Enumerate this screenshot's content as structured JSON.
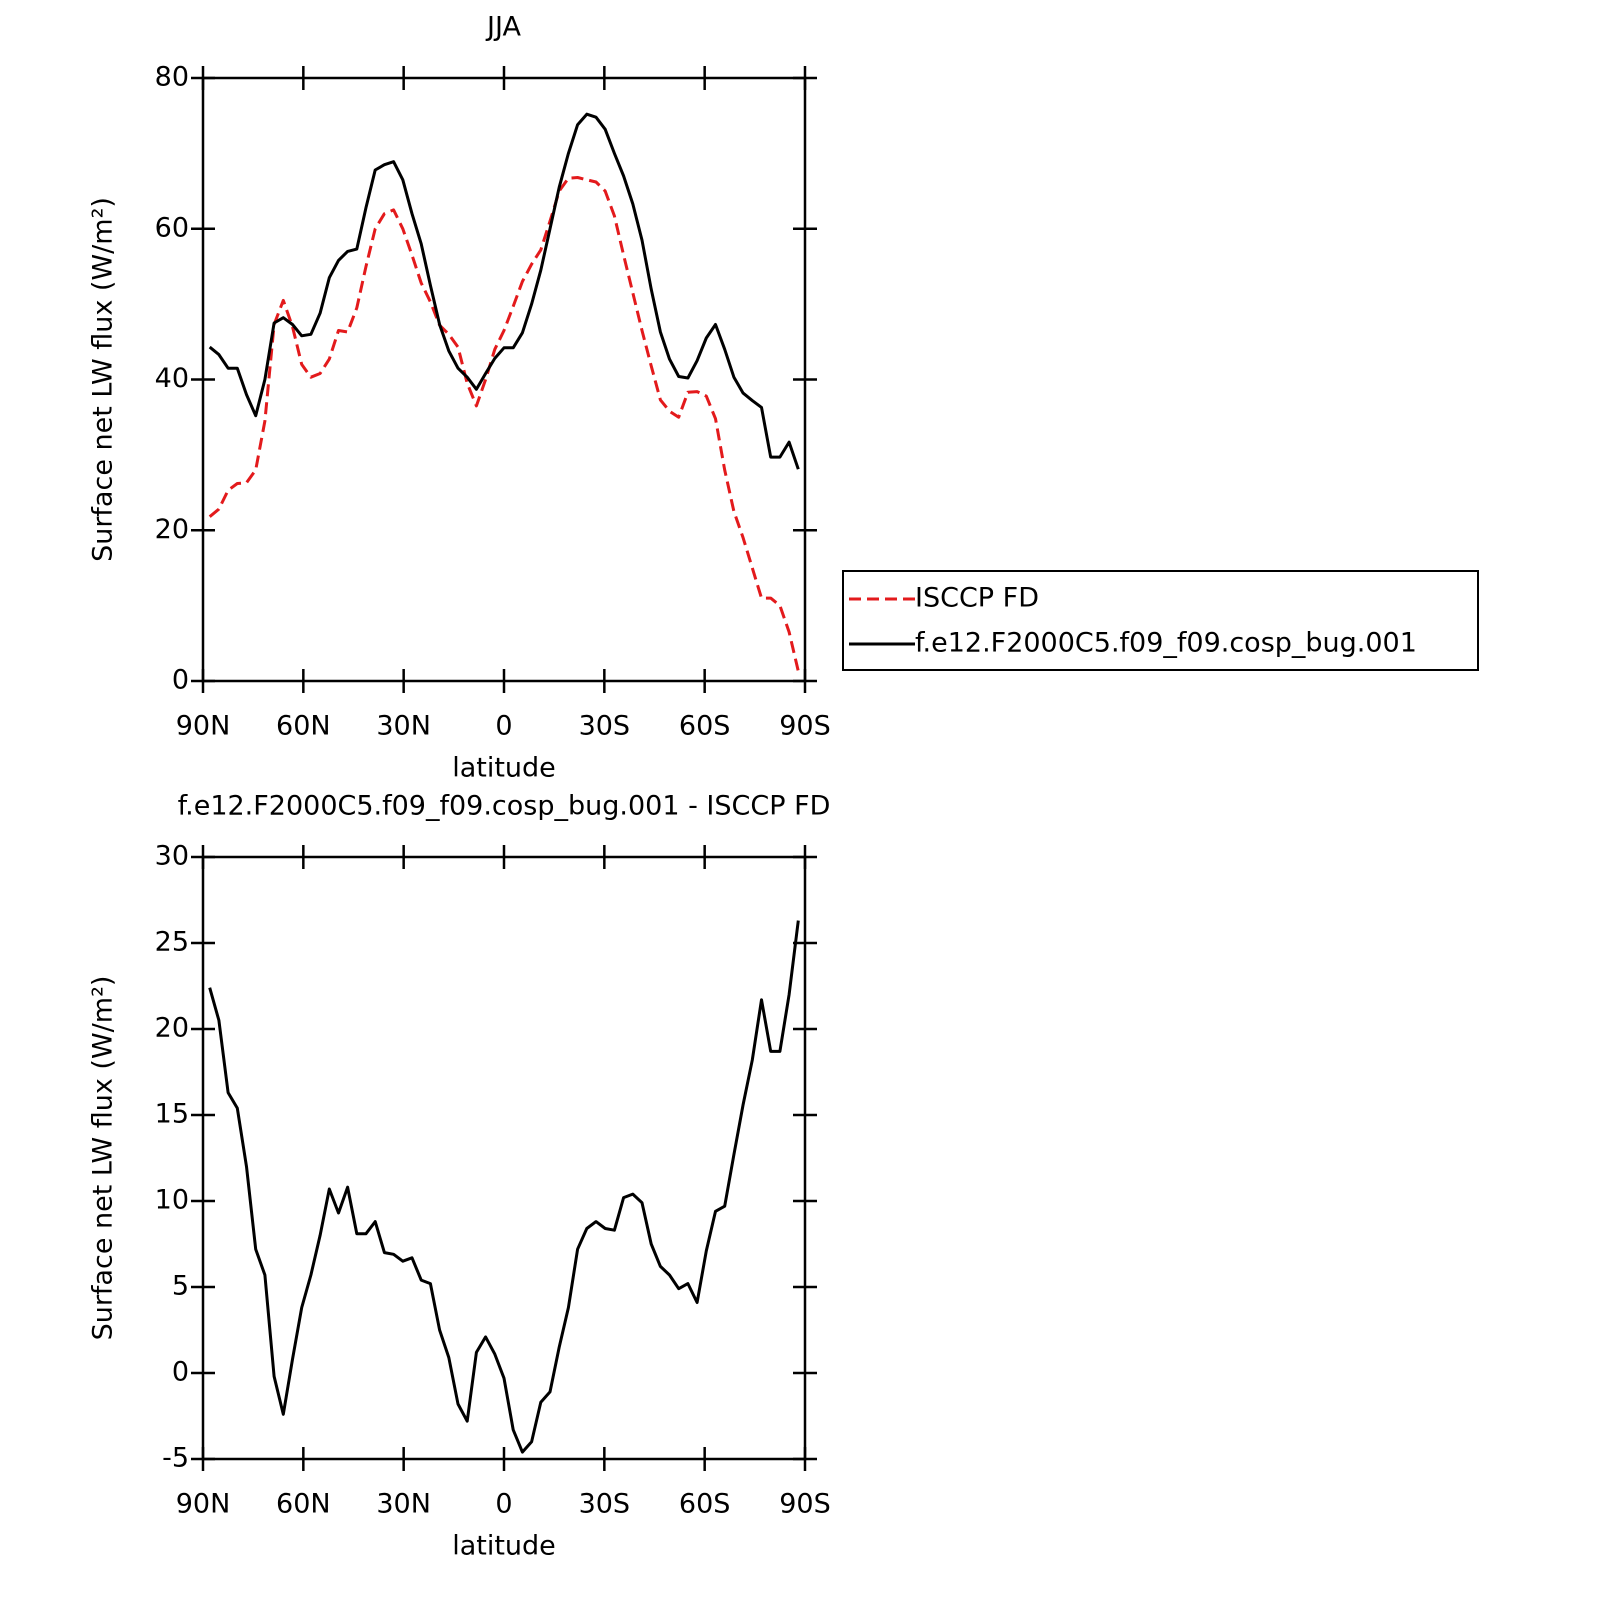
{
  "chart_data": [
    {
      "type": "line",
      "title": "JJA",
      "xlabel": "latitude",
      "ylabel": "Surface net LW flux (W/m²)",
      "x": [
        88,
        85.25,
        82.5,
        79.75,
        77,
        74.25,
        71.5,
        68.75,
        66,
        63.25,
        60.5,
        57.75,
        55,
        52.25,
        49.5,
        46.75,
        44,
        41.25,
        38.5,
        35.75,
        33,
        30.25,
        27.5,
        24.75,
        22,
        19.25,
        16.5,
        13.75,
        11,
        8.25,
        5.5,
        2.75,
        0,
        -2.75,
        -5.5,
        -8.25,
        -11,
        -13.75,
        -16.5,
        -19.25,
        -22,
        -24.75,
        -27.5,
        -30.25,
        -33,
        -35.75,
        -38.5,
        -41.25,
        -44,
        -46.75,
        -49.5,
        -52.25,
        -55,
        -57.75,
        -60.5,
        -63.25,
        -66,
        -68.75,
        -71.5,
        -74.25,
        -77,
        -79.75,
        -82.5,
        -85.25,
        -88
      ],
      "series": [
        {
          "name": "ISCCP FD",
          "color": "#e31a1c",
          "dashed": true,
          "values": [
            21.8,
            22.8,
            25.3,
            26.2,
            26.3,
            28,
            34.5,
            47.3,
            50.5,
            47,
            42,
            40.3,
            40.8,
            42.7,
            46.5,
            46.3,
            49.5,
            55,
            60,
            62,
            62.5,
            60,
            56.5,
            52.8,
            50.3,
            47.2,
            46,
            44.3,
            39.5,
            36.5,
            40,
            44,
            46.5,
            49.7,
            53,
            55.3,
            57.2,
            61,
            65,
            66.7,
            66.8,
            66.5,
            66.2,
            65,
            61.7,
            56.5,
            51.5,
            46.5,
            41.8,
            37.3,
            35.8,
            35,
            38.3,
            38.4,
            37.8,
            34.8,
            28,
            22.5,
            19,
            15,
            11,
            11,
            10,
            6.5,
            1.3
          ]
        },
        {
          "name": "f.e12.F2000C5.f09_f09.cosp_bug.001",
          "color": "#000000",
          "dashed": false,
          "values": [
            44.3,
            43.3,
            41.5,
            41.5,
            38,
            35.2,
            40,
            47.5,
            48.2,
            47.3,
            45.8,
            46,
            48.8,
            53.5,
            55.8,
            57,
            57.3,
            62.8,
            67.8,
            68.5,
            68.9,
            66.5,
            62,
            58,
            52.5,
            47.3,
            43.8,
            41.5,
            40.3,
            38.7,
            40.8,
            42.8,
            44.2,
            44.2,
            46.2,
            50,
            54.5,
            60,
            65.5,
            70,
            73.8,
            75.2,
            74.8,
            73.2,
            70,
            67,
            63.3,
            58.5,
            52,
            46.3,
            42.7,
            40.4,
            40.2,
            42.5,
            45.5,
            47.3,
            44,
            40.3,
            38.2,
            37.2,
            36.3,
            29.7,
            29.7,
            31.7,
            28.1
          ]
        }
      ],
      "xlim": [
        90,
        -90
      ],
      "xticks": [
        {
          "value": 90,
          "label": "90N"
        },
        {
          "value": 60,
          "label": "60N"
        },
        {
          "value": 30,
          "label": "30N"
        },
        0,
        {
          "value": -30,
          "label": "30S"
        },
        {
          "value": -60,
          "label": "60S"
        },
        {
          "value": -90,
          "label": "90S"
        }
      ],
      "ylim": [
        0,
        80
      ],
      "yticks": [
        0,
        20,
        40,
        60,
        80
      ],
      "legend": "right"
    },
    {
      "type": "line",
      "title": "f.e12.F2000C5.f09_f09.cosp_bug.001 - ISCCP FD",
      "xlabel": "latitude",
      "ylabel": "Surface net LW flux (W/m²)",
      "x": [
        88,
        85.25,
        82.5,
        79.75,
        77,
        74.25,
        71.5,
        68.75,
        66,
        63.25,
        60.5,
        57.75,
        55,
        52.25,
        49.5,
        46.75,
        44,
        41.25,
        38.5,
        35.75,
        33,
        30.25,
        27.5,
        24.75,
        22,
        19.25,
        16.5,
        13.75,
        11,
        8.25,
        5.5,
        2.75,
        0,
        -2.75,
        -5.5,
        -8.25,
        -11,
        -13.75,
        -16.5,
        -19.25,
        -22,
        -24.75,
        -27.5,
        -30.25,
        -33,
        -35.75,
        -38.5,
        -41.25,
        -44,
        -46.75,
        -49.5,
        -52.25,
        -55,
        -57.75,
        -60.5,
        -63.25,
        -66,
        -68.75,
        -71.5,
        -74.25,
        -77,
        -79.75,
        -82.5,
        -85.25,
        -88
      ],
      "series": [
        {
          "color": "#000000",
          "dashed": false,
          "values": [
            22.4,
            20.5,
            16.3,
            15.4,
            12,
            7.2,
            5.7,
            -0.2,
            -2.4,
            0.8,
            3.8,
            5.7,
            8,
            10.7,
            9.3,
            10.8,
            8.1,
            8.1,
            8.8,
            7.0,
            6.9,
            6.5,
            6.7,
            5.4,
            5.2,
            2.5,
            0.9,
            -1.8,
            -2.8,
            1.2,
            2.1,
            1.1,
            -0.3,
            -3.3,
            -4.6,
            -4,
            -1.7,
            -1.1,
            1.5,
            3.8,
            7.2,
            8.4,
            8.8,
            8.4,
            8.3,
            10.2,
            10.4,
            9.9,
            7.5,
            6.2,
            5.7,
            4.9,
            5.2,
            4.1,
            7.1,
            9.4,
            9.7,
            12.7,
            15.6,
            18.2,
            21.7,
            18.7,
            18.7,
            22,
            26.3
          ]
        }
      ],
      "xlim": [
        90,
        -90
      ],
      "xticks": [
        {
          "value": 90,
          "label": "90N"
        },
        {
          "value": 60,
          "label": "60N"
        },
        {
          "value": 30,
          "label": "30N"
        },
        0,
        {
          "value": -30,
          "label": "30S"
        },
        {
          "value": -60,
          "label": "60S"
        },
        {
          "value": -90,
          "label": "90S"
        }
      ],
      "ylim": [
        -5,
        30
      ],
      "yticks": [
        -5,
        0,
        5,
        10,
        15,
        20,
        25,
        30
      ]
    }
  ]
}
